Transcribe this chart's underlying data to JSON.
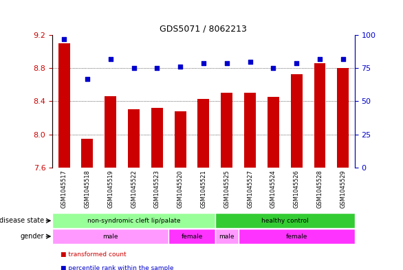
{
  "title": "GDS5071 / 8062213",
  "samples": [
    "GSM1045517",
    "GSM1045518",
    "GSM1045519",
    "GSM1045522",
    "GSM1045523",
    "GSM1045520",
    "GSM1045521",
    "GSM1045525",
    "GSM1045527",
    "GSM1045524",
    "GSM1045526",
    "GSM1045528",
    "GSM1045529"
  ],
  "bar_values": [
    9.1,
    7.95,
    8.46,
    8.3,
    8.32,
    8.28,
    8.43,
    8.5,
    8.5,
    8.45,
    8.73,
    8.86,
    8.8
  ],
  "dot_values": [
    97,
    67,
    82,
    75,
    75,
    76,
    79,
    79,
    80,
    75,
    79,
    82,
    82
  ],
  "ylim_left": [
    7.6,
    9.2
  ],
  "ylim_right": [
    0,
    100
  ],
  "yticks_left": [
    7.6,
    8.0,
    8.4,
    8.8,
    9.2
  ],
  "yticks_right": [
    0,
    25,
    50,
    75,
    100
  ],
  "bar_color": "#cc0000",
  "dot_color": "#0000cc",
  "background_color": "#ffffff",
  "grid_color": "#000000",
  "disease_state_groups": [
    {
      "label": "non-syndromic cleft lip/palate",
      "start": 0,
      "end": 7,
      "color": "#99ff99"
    },
    {
      "label": "healthy control",
      "start": 7,
      "end": 13,
      "color": "#33cc33"
    }
  ],
  "gender_groups": [
    {
      "label": "male",
      "start": 0,
      "end": 5,
      "color": "#ff99ff"
    },
    {
      "label": "female",
      "start": 5,
      "end": 7,
      "color": "#ff33ff"
    },
    {
      "label": "male",
      "start": 7,
      "end": 8,
      "color": "#ff99ff"
    },
    {
      "label": "female",
      "start": 8,
      "end": 13,
      "color": "#ff33ff"
    }
  ],
  "legend_items": [
    {
      "label": "transformed count",
      "color": "#cc0000"
    },
    {
      "label": "percentile rank within the sample",
      "color": "#0000cc"
    }
  ],
  "row_labels": [
    "disease state",
    "gender"
  ],
  "tick_fontsize": 8,
  "label_fontsize": 8
}
